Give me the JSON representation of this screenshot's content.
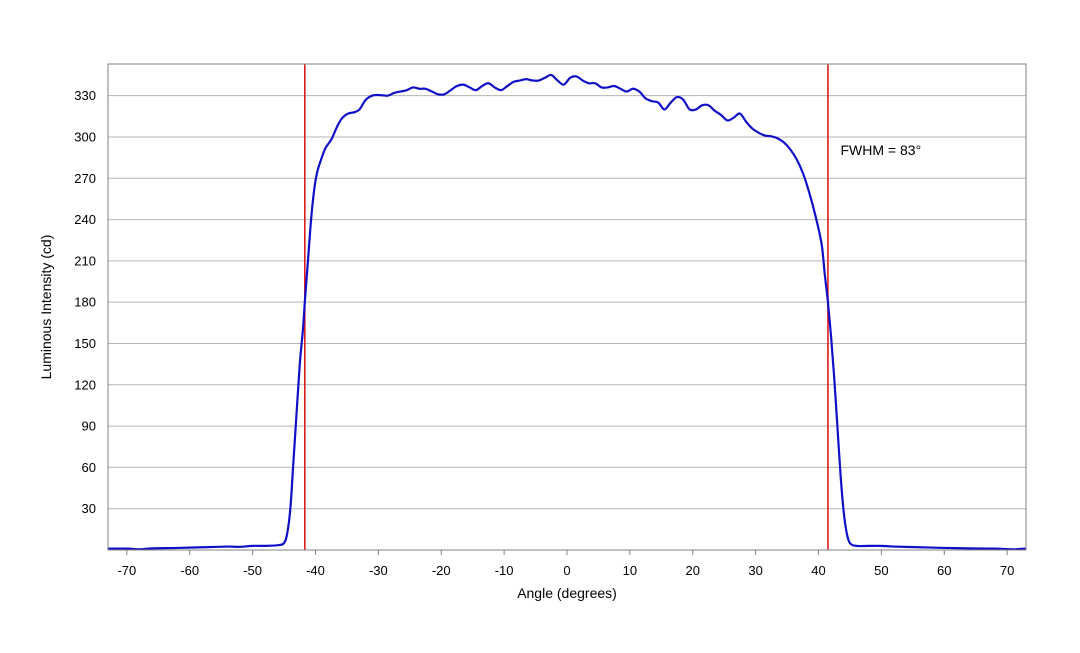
{
  "chart_data": {
    "type": "line",
    "title": "",
    "xlabel": "Angle (degrees)",
    "ylabel": "Luminous Intensity (cd)",
    "xlim": [
      -73,
      73
    ],
    "ylim": [
      0,
      353
    ],
    "xticks": [
      -70,
      -60,
      -50,
      -40,
      -30,
      -20,
      -10,
      0,
      10,
      20,
      30,
      40,
      50,
      60,
      70
    ],
    "yticks": [
      30,
      60,
      90,
      120,
      150,
      180,
      210,
      240,
      270,
      300,
      330
    ],
    "grid": true,
    "legend": "none",
    "series_color": "#1010c8",
    "marker_color": "#dd1c1c",
    "frame_color": "#808080",
    "grid_color": "#b4b4b4",
    "vertical_lines": [
      -41.7,
      41.5
    ],
    "annotation": "FWHM = 83°",
    "annotation_anchor": [
      43.5,
      287
    ],
    "series": [
      {
        "values": [
          [
            -73,
            1
          ],
          [
            -70,
            1
          ],
          [
            -68,
            0.5
          ],
          [
            -66,
            1.2
          ],
          [
            -62,
            1.5
          ],
          [
            -58,
            2
          ],
          [
            -54,
            2.5
          ],
          [
            -52,
            2.3
          ],
          [
            -50,
            3
          ],
          [
            -48,
            3
          ],
          [
            -46,
            3.5
          ],
          [
            -45,
            5
          ],
          [
            -44.5,
            12
          ],
          [
            -44,
            30
          ],
          [
            -43.5,
            65
          ],
          [
            -43,
            100
          ],
          [
            -42.5,
            135
          ],
          [
            -42,
            160
          ],
          [
            -41.7,
            180
          ],
          [
            -41.2,
            210
          ],
          [
            -40.7,
            240
          ],
          [
            -40.2,
            262
          ],
          [
            -39.7,
            275
          ],
          [
            -39,
            285
          ],
          [
            -38.4,
            292
          ],
          [
            -37.5,
            298
          ],
          [
            -37,
            303
          ],
          [
            -36.4,
            309
          ],
          [
            -35.7,
            314
          ],
          [
            -34.8,
            317
          ],
          [
            -33.8,
            318
          ],
          [
            -33,
            320
          ],
          [
            -32,
            327
          ],
          [
            -31,
            330
          ],
          [
            -30,
            330.5
          ],
          [
            -28.5,
            330
          ],
          [
            -27.5,
            332
          ],
          [
            -26.5,
            333
          ],
          [
            -25.5,
            334
          ],
          [
            -24.5,
            336
          ],
          [
            -23.5,
            335
          ],
          [
            -22.5,
            335
          ],
          [
            -21.5,
            333
          ],
          [
            -20.5,
            331
          ],
          [
            -19.5,
            331
          ],
          [
            -18.5,
            334
          ],
          [
            -17.5,
            337
          ],
          [
            -16.5,
            338
          ],
          [
            -15.5,
            336
          ],
          [
            -14.5,
            334
          ],
          [
            -13.5,
            337
          ],
          [
            -12.5,
            339
          ],
          [
            -11.5,
            336
          ],
          [
            -10.5,
            334
          ],
          [
            -9.5,
            337
          ],
          [
            -8.5,
            340
          ],
          [
            -7.5,
            341
          ],
          [
            -6.5,
            342
          ],
          [
            -5.5,
            341
          ],
          [
            -4.5,
            341
          ],
          [
            -3.5,
            343
          ],
          [
            -2.5,
            345
          ],
          [
            -1.5,
            341
          ],
          [
            -0.5,
            338
          ],
          [
            0.5,
            343
          ],
          [
            1.5,
            344
          ],
          [
            2.5,
            341
          ],
          [
            3.5,
            339
          ],
          [
            4.5,
            339
          ],
          [
            5.5,
            336
          ],
          [
            6.5,
            336
          ],
          [
            7.5,
            337
          ],
          [
            8.5,
            335
          ],
          [
            9.5,
            333
          ],
          [
            10.5,
            335
          ],
          [
            11.5,
            333
          ],
          [
            12.5,
            328
          ],
          [
            13.5,
            326
          ],
          [
            14.5,
            325
          ],
          [
            15.5,
            320
          ],
          [
            16.5,
            325
          ],
          [
            17.5,
            329
          ],
          [
            18.5,
            327
          ],
          [
            19.5,
            320
          ],
          [
            20.5,
            320
          ],
          [
            21.5,
            323
          ],
          [
            22.5,
            323
          ],
          [
            23.5,
            319
          ],
          [
            24.5,
            316
          ],
          [
            25.5,
            312
          ],
          [
            26.5,
            314
          ],
          [
            27.5,
            317
          ],
          [
            28.5,
            311
          ],
          [
            29.5,
            306
          ],
          [
            30.5,
            303
          ],
          [
            31.5,
            301
          ],
          [
            32.5,
            300.5
          ],
          [
            33.5,
            299
          ],
          [
            34.5,
            296
          ],
          [
            35.5,
            291
          ],
          [
            36.5,
            284
          ],
          [
            37.5,
            274
          ],
          [
            38.5,
            260
          ],
          [
            39.5,
            243
          ],
          [
            40.5,
            222
          ],
          [
            41,
            200
          ],
          [
            41.5,
            180
          ],
          [
            42,
            155
          ],
          [
            42.5,
            125
          ],
          [
            43,
            90
          ],
          [
            43.5,
            55
          ],
          [
            44,
            28
          ],
          [
            44.5,
            12
          ],
          [
            45,
            5
          ],
          [
            46,
            3
          ],
          [
            48,
            3
          ],
          [
            50,
            3
          ],
          [
            52,
            2.5
          ],
          [
            56,
            2
          ],
          [
            60,
            1.5
          ],
          [
            64,
            1.2
          ],
          [
            68,
            1
          ],
          [
            71,
            0.5
          ],
          [
            73,
            1
          ]
        ]
      }
    ]
  }
}
